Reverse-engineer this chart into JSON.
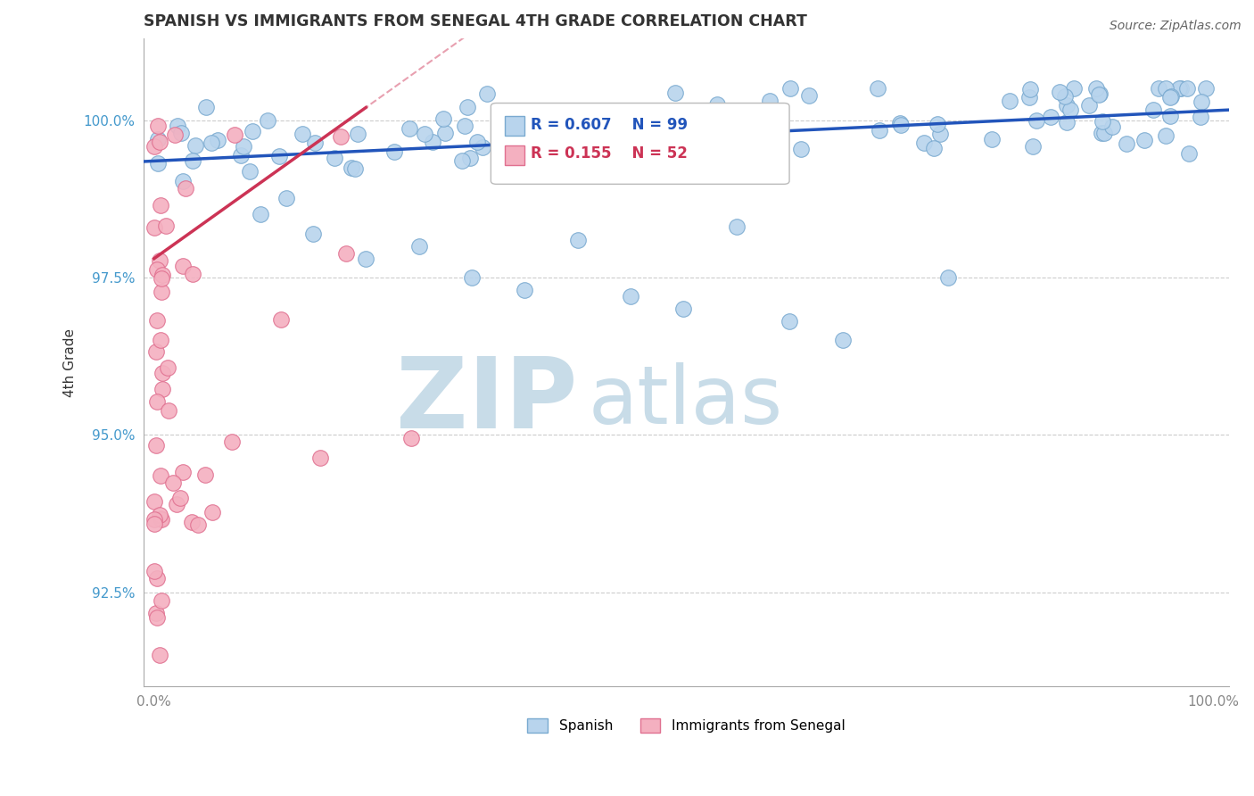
{
  "title": "SPANISH VS IMMIGRANTS FROM SENEGAL 4TH GRADE CORRELATION CHART",
  "source_text": "Source: ZipAtlas.com",
  "ylabel": "4th Grade",
  "blue_R": 0.607,
  "blue_N": 99,
  "pink_R": 0.155,
  "pink_N": 52,
  "blue_color": "#b8d4ed",
  "pink_color": "#f4b0c0",
  "blue_edge_color": "#7aaad0",
  "pink_edge_color": "#e07090",
  "blue_line_color": "#2255bb",
  "pink_line_color": "#cc3355",
  "pink_dash_color": "#e8a0b0",
  "watermark_zip": "ZIP",
  "watermark_atlas": "atlas",
  "watermark_color_zip": "#c8dce8",
  "watermark_color_atlas": "#c8dce8",
  "legend_label_blue": "Spanish",
  "legend_label_pink": "Immigrants from Senegal",
  "ytick_color": "#4499cc",
  "xtick_color": "#888888",
  "ylabel_color": "#333333",
  "grid_color": "#cccccc",
  "ylim_low": 91.0,
  "ylim_high": 101.3,
  "xlim_low": -1.0,
  "xlim_high": 101.5
}
